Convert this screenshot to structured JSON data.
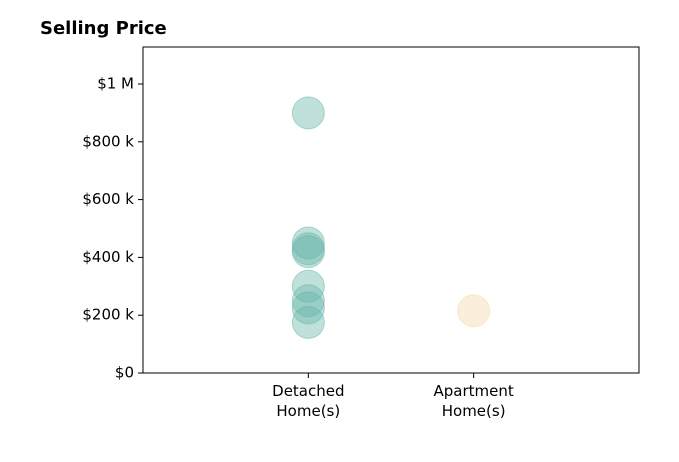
{
  "chart_data": {
    "type": "strip",
    "title": "Selling Price",
    "categories": [
      "Detached\nHome(s)",
      "Apartment\nHome(s)"
    ],
    "series": [
      {
        "color": "#66b5aa",
        "values": [
          900000,
          450000,
          430000,
          420000,
          300000,
          250000,
          225000,
          175000
        ]
      },
      {
        "color": "#f2d9a6",
        "values": [
          215000
        ]
      }
    ],
    "ylim": [
      0,
      1128000
    ],
    "yticks": [
      {
        "value": 0,
        "label": "$0"
      },
      {
        "value": 200000,
        "label": "$200 k"
      },
      {
        "value": 400000,
        "label": "$400 k"
      },
      {
        "value": 600000,
        "label": "$600 k"
      },
      {
        "value": 800000,
        "label": "$800 k"
      },
      {
        "value": 1000000,
        "label": "$1 M"
      }
    ]
  }
}
